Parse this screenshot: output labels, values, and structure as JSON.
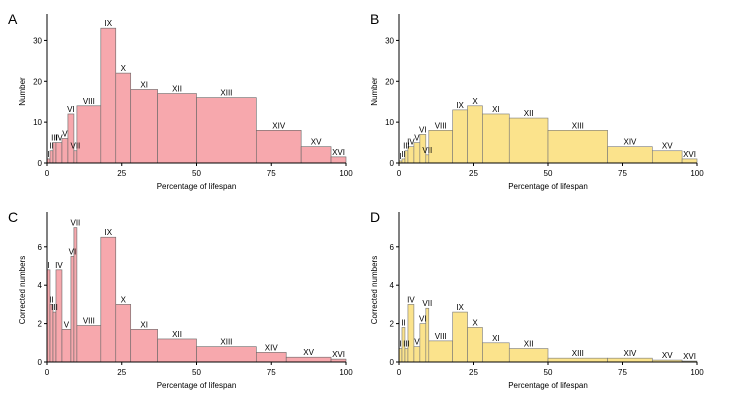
{
  "colors": {
    "pink_fill": "#f7a8ad",
    "pink_stroke": "#666666",
    "yellow_fill": "#fbe38c",
    "yellow_stroke": "#777777",
    "axis": "#000000"
  },
  "chart_data": [
    {
      "panel": "A",
      "type": "bar",
      "xlabel": "Percentage of lifespan",
      "ylabel": "Number",
      "xlim": [
        0,
        100
      ],
      "ylim": [
        0,
        35
      ],
      "xticks": [
        "0",
        "25",
        "50",
        "75",
        "100"
      ],
      "yticks": [
        "0",
        "10",
        "20",
        "30"
      ],
      "bins": [
        {
          "label": "I",
          "start": 0,
          "end": 1,
          "value": 1
        },
        {
          "label": "II",
          "start": 1,
          "end": 2,
          "value": 3
        },
        {
          "label": "III",
          "start": 2,
          "end": 3,
          "value": 5
        },
        {
          "label": "IV",
          "start": 3,
          "end": 5,
          "value": 5
        },
        {
          "label": "V",
          "start": 5,
          "end": 7,
          "value": 6
        },
        {
          "label": "VI",
          "start": 7,
          "end": 9,
          "value": 12
        },
        {
          "label": "VII",
          "start": 9,
          "end": 10,
          "value": 3
        },
        {
          "label": "VIII",
          "start": 10,
          "end": 18,
          "value": 14
        },
        {
          "label": "IX",
          "start": 18,
          "end": 23,
          "value": 33
        },
        {
          "label": "X",
          "start": 23,
          "end": 28,
          "value": 22
        },
        {
          "label": "XI",
          "start": 28,
          "end": 37,
          "value": 18
        },
        {
          "label": "XII",
          "start": 37,
          "end": 50,
          "value": 17
        },
        {
          "label": "XIII",
          "start": 50,
          "end": 70,
          "value": 16
        },
        {
          "label": "XIV",
          "start": 70,
          "end": 85,
          "value": 8
        },
        {
          "label": "XV",
          "start": 85,
          "end": 95,
          "value": 4
        },
        {
          "label": "XVI",
          "start": 95,
          "end": 100,
          "value": 1.5
        }
      ]
    },
    {
      "panel": "B",
      "type": "bar",
      "xlabel": "Percentage of lifespan",
      "ylabel": "Number",
      "xlim": [
        0,
        100
      ],
      "ylim": [
        0,
        35
      ],
      "xticks": [
        "0",
        "25",
        "50",
        "75",
        "100"
      ],
      "yticks": [
        "0",
        "10",
        "20",
        "30"
      ],
      "bins": [
        {
          "label": "I",
          "start": 0,
          "end": 1,
          "value": 0.5
        },
        {
          "label": "II",
          "start": 1,
          "end": 2,
          "value": 1
        },
        {
          "label": "III",
          "start": 2,
          "end": 3,
          "value": 3
        },
        {
          "label": "IV",
          "start": 3,
          "end": 5,
          "value": 4
        },
        {
          "label": "V",
          "start": 5,
          "end": 7,
          "value": 5
        },
        {
          "label": "VI",
          "start": 7,
          "end": 9,
          "value": 7
        },
        {
          "label": "VII",
          "start": 9,
          "end": 10,
          "value": 2
        },
        {
          "label": "VIII",
          "start": 10,
          "end": 18,
          "value": 8
        },
        {
          "label": "IX",
          "start": 18,
          "end": 23,
          "value": 13
        },
        {
          "label": "X",
          "start": 23,
          "end": 28,
          "value": 14
        },
        {
          "label": "XI",
          "start": 28,
          "end": 37,
          "value": 12
        },
        {
          "label": "XII",
          "start": 37,
          "end": 50,
          "value": 11
        },
        {
          "label": "XIII",
          "start": 50,
          "end": 70,
          "value": 8
        },
        {
          "label": "XIV",
          "start": 70,
          "end": 85,
          "value": 4
        },
        {
          "label": "XV",
          "start": 85,
          "end": 95,
          "value": 3
        },
        {
          "label": "XVI",
          "start": 95,
          "end": 100,
          "value": 1
        }
      ]
    },
    {
      "panel": "C",
      "type": "bar",
      "xlabel": "Percentage of lifespan",
      "ylabel": "Corrected numbers",
      "xlim": [
        0,
        100
      ],
      "ylim": [
        0,
        7.5
      ],
      "xticks": [
        "0",
        "25",
        "50",
        "75",
        "100"
      ],
      "yticks": [
        "0",
        "2",
        "4",
        "6"
      ],
      "bins": [
        {
          "label": "I",
          "start": 0,
          "end": 1,
          "value": 4.8
        },
        {
          "label": "II",
          "start": 1,
          "end": 2,
          "value": 3
        },
        {
          "label": "III",
          "start": 2,
          "end": 3,
          "value": 2.6
        },
        {
          "label": "IV",
          "start": 3,
          "end": 5,
          "value": 4.8
        },
        {
          "label": "V",
          "start": 5,
          "end": 8,
          "value": 1.7
        },
        {
          "label": "VI",
          "start": 8,
          "end": 9,
          "value": 5.5
        },
        {
          "label": "VII",
          "start": 9,
          "end": 10,
          "value": 7
        },
        {
          "label": "VIII",
          "start": 10,
          "end": 18,
          "value": 1.9
        },
        {
          "label": "IX",
          "start": 18,
          "end": 23,
          "value": 6.5
        },
        {
          "label": "X",
          "start": 23,
          "end": 28,
          "value": 3
        },
        {
          "label": "XI",
          "start": 28,
          "end": 37,
          "value": 1.7
        },
        {
          "label": "XII",
          "start": 37,
          "end": 50,
          "value": 1.2
        },
        {
          "label": "XIII",
          "start": 50,
          "end": 70,
          "value": 0.8
        },
        {
          "label": "XIV",
          "start": 70,
          "end": 80,
          "value": 0.5
        },
        {
          "label": "XV",
          "start": 80,
          "end": 95,
          "value": 0.25
        },
        {
          "label": "XVI",
          "start": 95,
          "end": 100,
          "value": 0.15
        }
      ]
    },
    {
      "panel": "D",
      "type": "bar",
      "xlabel": "Percentage of lifespan",
      "ylabel": "Corrected numbers",
      "xlim": [
        0,
        100
      ],
      "ylim": [
        0,
        7.5
      ],
      "xticks": [
        "0",
        "25",
        "50",
        "75",
        "100"
      ],
      "yticks": [
        "0",
        "2",
        "4",
        "6"
      ],
      "bins": [
        {
          "label": "I",
          "start": 0,
          "end": 1,
          "value": 0.7
        },
        {
          "label": "II",
          "start": 1,
          "end": 2,
          "value": 1.8
        },
        {
          "label": "III",
          "start": 2,
          "end": 3,
          "value": 0.7
        },
        {
          "label": "IV",
          "start": 3,
          "end": 5,
          "value": 3
        },
        {
          "label": "V",
          "start": 5,
          "end": 7,
          "value": 0.8
        },
        {
          "label": "VI",
          "start": 7,
          "end": 9,
          "value": 2
        },
        {
          "label": "VII",
          "start": 9,
          "end": 10,
          "value": 2.8
        },
        {
          "label": "VIII",
          "start": 10,
          "end": 18,
          "value": 1.1
        },
        {
          "label": "IX",
          "start": 18,
          "end": 23,
          "value": 2.6
        },
        {
          "label": "X",
          "start": 23,
          "end": 28,
          "value": 1.8
        },
        {
          "label": "XI",
          "start": 28,
          "end": 37,
          "value": 1
        },
        {
          "label": "XII",
          "start": 37,
          "end": 50,
          "value": 0.7
        },
        {
          "label": "XIII",
          "start": 50,
          "end": 70,
          "value": 0.2
        },
        {
          "label": "XIV",
          "start": 70,
          "end": 85,
          "value": 0.2
        },
        {
          "label": "XV",
          "start": 85,
          "end": 95,
          "value": 0.1
        },
        {
          "label": "XVI",
          "start": 95,
          "end": 100,
          "value": 0.05
        }
      ]
    }
  ]
}
